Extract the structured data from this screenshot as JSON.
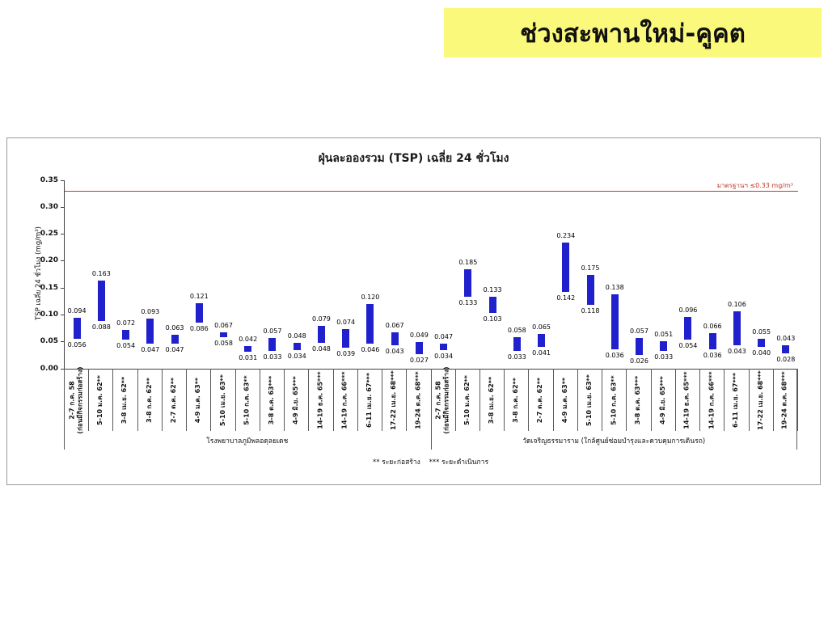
{
  "banner": {
    "title": "ช่วงสะพานใหม่-คูคต",
    "bg_color": "#fbf97b"
  },
  "chart_data": {
    "type": "bar",
    "subtype": "floating-range-bars",
    "title": "ฝุ่นละอองรวม (TSP) เฉลี่ย 24 ชั่วโมง",
    "xlabel": "",
    "ylabel": "TSP เฉลี่ย 24 ชั่วโมง (mg/m³)",
    "ylim": [
      0,
      0.35
    ],
    "yticks": [
      "0.00",
      "0.05",
      "0.10",
      "0.15",
      "0.20",
      "0.25",
      "0.30",
      "0.35"
    ],
    "grid": false,
    "bar_color": "#2020cd",
    "standard_line": {
      "value": 0.33,
      "label": "มาตรฐานฯ ≤0.33 mg/m³",
      "color": "#c0392b"
    },
    "groups": [
      {
        "name": "โรงพยาบาลภูมิพลอดุลยเดช",
        "points": [
          {
            "label": "2-7 ก.ค. 58\n(ก่อนมีกิจกรรมก่อสร้าง)",
            "min": 0.056,
            "max": 0.094
          },
          {
            "label": "5-10 ม.ค. 62**",
            "min": 0.088,
            "max": 0.163
          },
          {
            "label": "3-8 เม.ย. 62**",
            "min": 0.054,
            "max": 0.072
          },
          {
            "label": "3-8 ก.ค. 62**",
            "min": 0.047,
            "max": 0.093
          },
          {
            "label": "2-7 ต.ค. 62**",
            "min": 0.047,
            "max": 0.063
          },
          {
            "label": "4-9 ม.ค. 63**",
            "min": 0.086,
            "max": 0.121
          },
          {
            "label": "5-10 เม.ย. 63**",
            "min": 0.058,
            "max": 0.067
          },
          {
            "label": "5-10 ก.ค. 63**",
            "min": 0.031,
            "max": 0.042
          },
          {
            "label": "3-8 ต.ค. 63***",
            "min": 0.033,
            "max": 0.057
          },
          {
            "label": "4-9 มิ.ย. 65***",
            "min": 0.034,
            "max": 0.048
          },
          {
            "label": "14-19 ธ.ค. 65***",
            "min": 0.048,
            "max": 0.079
          },
          {
            "label": "14-19 ก.ค. 66***",
            "min": 0.039,
            "max": 0.074
          },
          {
            "label": "6-11 เม.ย. 67***",
            "min": 0.046,
            "max": 0.12
          },
          {
            "label": "17-22 เม.ย. 68***",
            "min": 0.043,
            "max": 0.067
          },
          {
            "label": "19-24 ต.ค. 68***",
            "min": 0.027,
            "max": 0.049
          }
        ]
      },
      {
        "name": "วัดเจริญธรรมาราม (ใกล้ศูนย์ซ่อมบำรุงและควบคุมการเดินรถ)",
        "points": [
          {
            "label": "2-7 ก.ค. 58\n(ก่อนมีกิจกรรมก่อสร้าง)",
            "min": 0.034,
            "max": 0.047
          },
          {
            "label": "5-10 ม.ค. 62**",
            "min": 0.133,
            "max": 0.185
          },
          {
            "label": "3-8 เม.ย. 62**",
            "min": 0.103,
            "max": 0.133
          },
          {
            "label": "3-8 ก.ค. 62**",
            "min": 0.033,
            "max": 0.058
          },
          {
            "label": "2-7 ต.ค. 62**",
            "min": 0.041,
            "max": 0.065
          },
          {
            "label": "4-9 ม.ค. 63**",
            "min": 0.142,
            "max": 0.234
          },
          {
            "label": "5-10 เม.ย. 63**",
            "min": 0.118,
            "max": 0.175
          },
          {
            "label": "5-10 ก.ค. 63**",
            "min": 0.036,
            "max": 0.138
          },
          {
            "label": "3-8 ต.ค. 63***",
            "min": 0.026,
            "max": 0.057
          },
          {
            "label": "4-9 มิ.ย. 65***",
            "min": 0.033,
            "max": 0.051
          },
          {
            "label": "14-19 ธ.ค. 65***",
            "min": 0.054,
            "max": 0.096
          },
          {
            "label": "14-19 ก.ค. 66***",
            "min": 0.036,
            "max": 0.066
          },
          {
            "label": "6-11 เม.ย. 67***",
            "min": 0.043,
            "max": 0.106
          },
          {
            "label": "17-22 เม.ย. 68***",
            "min": 0.04,
            "max": 0.055
          },
          {
            "label": "19-24 ต.ค. 68***",
            "min": 0.028,
            "max": 0.043
          }
        ]
      }
    ],
    "footnote": "** ระยะก่อสร้าง    *** ระยะดำเนินการ"
  }
}
